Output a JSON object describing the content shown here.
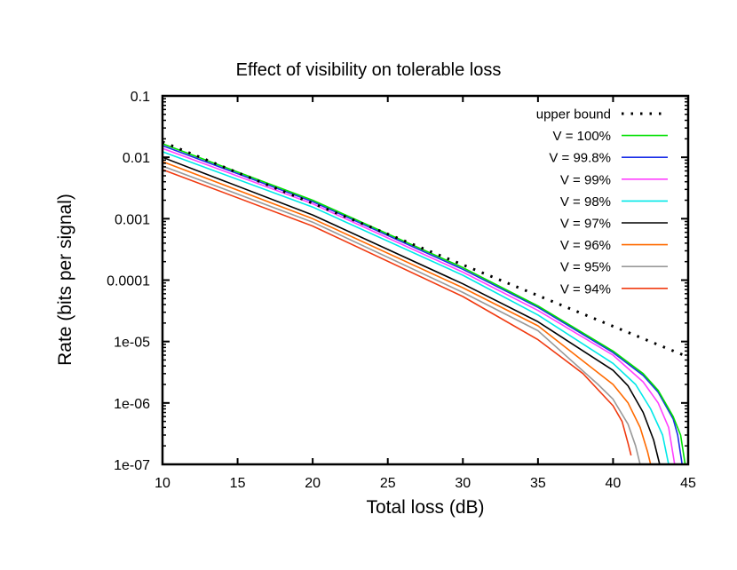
{
  "chart_data": {
    "type": "line",
    "title": "Effect of visibility on tolerable loss",
    "xlabel": "Total loss (dB)",
    "ylabel": "Rate (bits per signal)",
    "xlim": [
      10,
      45
    ],
    "ylim": [
      1e-07,
      0.1
    ],
    "yscale": "log",
    "xticks": [
      10,
      15,
      20,
      25,
      30,
      35,
      40,
      45
    ],
    "yticks": [
      {
        "value": 0.1,
        "label": "0.1"
      },
      {
        "value": 0.01,
        "label": "0.01"
      },
      {
        "value": 0.001,
        "label": "0.001"
      },
      {
        "value": 0.0001,
        "label": "0.0001"
      },
      {
        "value": 1e-05,
        "label": "1e-05"
      },
      {
        "value": 1e-06,
        "label": "1e-06"
      },
      {
        "value": 1e-07,
        "label": "1e-07"
      }
    ],
    "grid": false,
    "legend_position": "upper right",
    "series": [
      {
        "name": "upper bound",
        "color": "#000000",
        "dash": "dotted",
        "x": [
          10,
          45
        ],
        "y": [
          0.0178,
          5.6e-06
        ]
      },
      {
        "name": "V = 100%",
        "color": "#00e000",
        "dash": "solid",
        "x": [
          10,
          20,
          30,
          35,
          40,
          42,
          43,
          44,
          44.5,
          44.8
        ],
        "y": [
          0.0166,
          0.002,
          0.00016,
          3.8e-05,
          7e-06,
          3e-06,
          1.6e-06,
          6e-07,
          3e-07,
          1e-07
        ]
      },
      {
        "name": "V = 99.8%",
        "color": "#1a2ee8",
        "dash": "solid",
        "x": [
          10,
          20,
          30,
          35,
          40,
          42,
          43,
          44,
          44.3,
          44.6
        ],
        "y": [
          0.0155,
          0.0019,
          0.00015,
          3.6e-05,
          6.6e-06,
          2.8e-06,
          1.5e-06,
          5.5e-07,
          3e-07,
          1e-07
        ]
      },
      {
        "name": "V = 99%",
        "color": "#ff40ff",
        "dash": "solid",
        "x": [
          10,
          20,
          30,
          35,
          40,
          42,
          43,
          43.7,
          44.1
        ],
        "y": [
          0.014,
          0.00175,
          0.000135,
          3.2e-05,
          6e-06,
          2.2e-06,
          1e-06,
          4e-07,
          1e-07
        ]
      },
      {
        "name": "V = 98%",
        "color": "#00e8e8",
        "dash": "solid",
        "x": [
          10,
          20,
          30,
          35,
          40,
          41.5,
          42.5,
          43.3,
          43.7
        ],
        "y": [
          0.0123,
          0.00155,
          0.00012,
          2.7e-05,
          4.4e-06,
          2e-06,
          8e-07,
          3e-07,
          1e-07
        ]
      },
      {
        "name": "V = 97%",
        "color": "#000000",
        "dash": "solid",
        "x": [
          10,
          20,
          30,
          35,
          40,
          41,
          42,
          42.7,
          43.1
        ],
        "y": [
          0.01,
          0.00115,
          8.7e-05,
          2.1e-05,
          3.4e-06,
          1.9e-06,
          7e-07,
          2.5e-07,
          1e-07
        ]
      },
      {
        "name": "V = 96%",
        "color": "#ff6a00",
        "dash": "solid",
        "x": [
          10,
          20,
          30,
          35,
          40,
          41,
          41.8,
          42.3,
          42.5
        ],
        "y": [
          0.0085,
          0.001,
          7.5e-05,
          1.8e-05,
          2e-06,
          1e-06,
          4e-07,
          1.6e-07,
          1e-07
        ]
      },
      {
        "name": "V = 95%",
        "color": "#999999",
        "dash": "solid",
        "x": [
          10,
          20,
          30,
          35,
          39,
          40,
          41,
          41.5,
          41.8
        ],
        "y": [
          0.0072,
          0.00088,
          6.3e-05,
          1.5e-05,
          2e-06,
          1.15e-06,
          4.5e-07,
          2e-07,
          1e-07
        ]
      },
      {
        "name": "V = 94%",
        "color": "#f03a10",
        "dash": "solid",
        "x": [
          10,
          20,
          30,
          35,
          38,
          40,
          40.6,
          41.0,
          41.2
        ],
        "y": [
          0.0063,
          0.00076,
          5.4e-05,
          1.07e-05,
          3e-06,
          9e-07,
          5e-07,
          2.2e-07,
          1.4e-07
        ]
      }
    ]
  },
  "labels": {
    "title": "Effect of visibility on tolerable loss",
    "xlabel": "Total loss (dB)",
    "ylabel": "Rate (bits per signal)"
  }
}
